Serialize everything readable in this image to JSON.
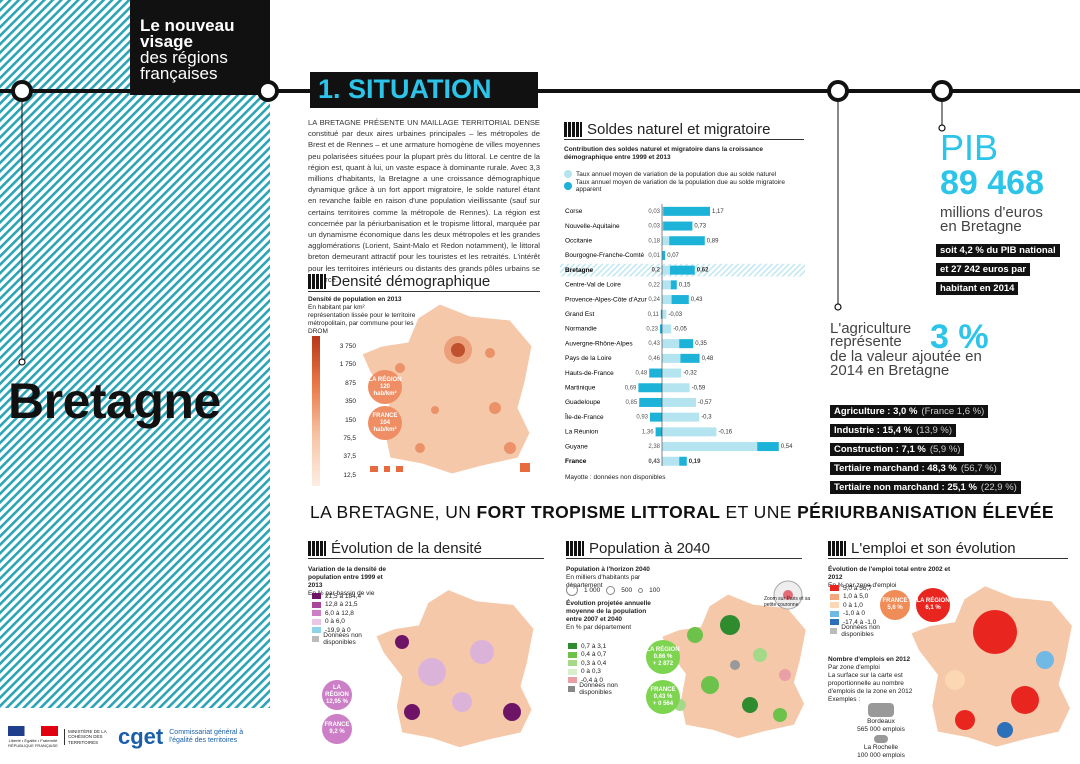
{
  "sidebar": {
    "heading_bold": "Le nouveau visage",
    "heading_light": "des régions françaises",
    "region": "Bretagne"
  },
  "footer": {
    "republic": "Liberté • Égalité • Fraternité RÉPUBLIQUE FRANÇAISE",
    "ministry": "MINISTÈRE DE LA COHÉSION DES TERRITOIRES",
    "logo": "cget",
    "agency": "Commissariat général à l'égalité des territoires"
  },
  "section_title": "1. SITUATION",
  "intro": "LA BRETAGNE PRÉSENTE UN MAILLAGE TERRITORIAL DENSE constitué par deux aires urbaines principales – les métropoles de Brest et de Rennes – et une armature homogène de villes moyennes peu polarisées situées pour la plupart près du littoral. Le centre de la région est, quant à lui, un vaste espace à dominante rurale. Avec 3,3 millions d'habitants, la Bretagne a une croissance démographique dynamique grâce à un fort apport migratoire, le solde naturel étant en revanche faible en raison d'une population vieillissante (sauf sur certains territoires comme la métropole de Rennes). La région est concernée par la périurbanisation et le tropisme littoral, marquée par un dynamisme économique dans les deux métropoles et les grandes agglomérations (Lorient, Saint-Malo et Redon notamment), le littoral breton demeurant attractif pour les touristes et les retraités. L'intérêt pour les territoires intérieurs ou distants des grands pôles urbains se renforce.",
  "density": {
    "title": "Densité démographique",
    "subtitle": "Densité de population en 2013",
    "unit": "En habitant par km²",
    "note": "représentation lissée pour le territoire métropolitain, par commune pour les DROM",
    "legend": [
      "3 750",
      "1 750",
      "875",
      "350",
      "150",
      "75,5",
      "37,5",
      "12,5"
    ],
    "region_badge": {
      "label": "LA RÉGION",
      "value": "120 hab/km²"
    },
    "france_badge": {
      "label": "FRANCE",
      "value": "104 hab/km²"
    }
  },
  "soldes": {
    "title": "Soldes naturel et migratoire",
    "subtitle": "Contribution des soldes naturel et migratoire dans la croissance démographique entre 1999 et 2013",
    "categories": [
      "Corse",
      "Nouvelle-Aquitaine",
      "Occitanie",
      "Bourgogne-Franche-Comté",
      "Bretagne",
      "Centre-Val de Loire",
      "Provence-Alpes-Côte d'Azur",
      "Grand Est",
      "Normandie",
      "Auvergne-Rhône-Alpes",
      "Pays de la Loire",
      "Hauts-de-France",
      "Martinique",
      "Guadeloupe",
      "Île-de-France",
      "La Réunion",
      "Guyane",
      "France"
    ],
    "highlight": "Bretagne",
    "series": [
      {
        "name": "Taux annuel moyen de variation de la population due au solde naturel",
        "color": "#b5e4f1",
        "values": [
          0.03,
          0.03,
          0.18,
          0.01,
          0.2,
          0.22,
          0.24,
          0.11,
          0.23,
          0.43,
          0.46,
          0.48,
          0.69,
          0.85,
          0.93,
          1.36,
          2.38,
          0.43
        ],
        "value_labels": [
          "0,03",
          "0,03",
          "0,18",
          "0,01",
          "0,2",
          "0,22",
          "0,24",
          "0,11",
          "0,23",
          "0,43",
          "0,46",
          "0,48",
          "0,69",
          "0,85",
          "0,93",
          "1,36",
          "2,38",
          "0,43"
        ]
      },
      {
        "name": "Taux annuel moyen de variation de la population due au solde migratoire apparent",
        "color": "#1db3d8",
        "values": [
          1.17,
          0.73,
          0.89,
          0.07,
          0.62,
          0.15,
          0.43,
          -0.03,
          -0.05,
          0.35,
          0.48,
          -0.32,
          -0.59,
          -0.57,
          -0.3,
          -0.16,
          0.54,
          0.19
        ],
        "value_labels": [
          "1,17",
          "0,73",
          "0,89",
          "0,07",
          "0,62",
          "0,15",
          "0,43",
          "-0,03",
          "-0,05",
          "0,35",
          "0,48",
          "-0,32",
          "-0,59",
          "-0,57",
          "-0,3",
          "-0,16",
          "0,54",
          "0,19"
        ]
      }
    ],
    "note": "Mayotte : données non disponibles"
  },
  "pib": {
    "label": "PIB",
    "value": "89 468",
    "unit": "millions d'euros en Bretagne",
    "details": [
      "soit 4,2 % du PIB national",
      "et 27 242 euros par",
      "habitant en 2014"
    ]
  },
  "agriculture": {
    "text_before": "L'agriculture représente",
    "value": "3 %",
    "text_after": "de la valeur ajoutée en 2014 en Bretagne",
    "sectors": [
      {
        "label": "Agriculture : 3,0 %",
        "france": "(France 1,6 %)"
      },
      {
        "label": "Industrie : 15,4 %",
        "france": "(13,9 %)"
      },
      {
        "label": "Construction : 7,1 %",
        "france": "(5,9 %)"
      },
      {
        "label": "Tertiaire marchand : 48,3 %",
        "france": "(56,7 %)"
      },
      {
        "label": "Tertiaire non marchand : 25,1 %",
        "france": "(22,9 %)"
      }
    ]
  },
  "headline": [
    "LA BRETAGNE, UN ",
    "FORT TROPISME LITTORAL",
    " ET UNE ",
    "PÉRIURBANISATION ÉLEVÉE"
  ],
  "evolution_densite": {
    "title": "Évolution de la densité",
    "subtitle": "Variation de la densité de population entre 1999 et 2013",
    "unit": "En % par bassin de vie",
    "legend": [
      "21,5 à 184,4",
      "12,8 à 21,5",
      "6,0 à 12,8",
      "0 à 6,0",
      "-19,9 à 0",
      "Données non disponibles"
    ],
    "region_badge": {
      "label": "LA RÉGION",
      "value": "12,95 %"
    },
    "france_badge": {
      "label": "FRANCE",
      "value": "9,2 %"
    }
  },
  "population_2040": {
    "title": "Population à 2040",
    "subtitle": "Population à l'horizon 2040",
    "unit": "En milliers d'habitants par département",
    "sizes": [
      "1 000",
      "500",
      "100"
    ],
    "subtitle2": "Évolution projetée annuelle moyenne de la population entre 2007 et 2040",
    "unit2": "En % par département",
    "legend": [
      "0,7 à 3,1",
      "0,4 à 0,7",
      "0,3 à 0,4",
      "0 à 0,3",
      "-0,4 à 0",
      "Données non disponibles"
    ],
    "zoom": "Zoom sur Paris et sa petite couronne",
    "region_badge": {
      "label": "LA RÉGION",
      "value": "0,66 %",
      "extra": "+ 2 872"
    },
    "france_badge": {
      "label": "FRANCE",
      "value": "0,43 %",
      "extra": "+ 0 564"
    }
  },
  "emploi": {
    "title": "L'emploi et son évolution",
    "subtitle": "Évolution de l'emploi total entre 2002 et 2012",
    "unit": "En % par zone d'emploi",
    "legend": [
      "5,0 à 56,7",
      "1,0 à 5,0",
      "0 à 1,0",
      "-1,0 à 0",
      "-17,4 à -1,0",
      "Données non disponibles"
    ],
    "france_badge": {
      "label": "FRANCE",
      "value": "5,6 %"
    },
    "region_badge": {
      "label": "LA RÉGION",
      "value": "6,1 %"
    },
    "subtitle2": "Nombre d'emplois en 2012",
    "unit2": "Par zone d'emploi",
    "note": "La surface sur la carte est proportionnelle au nombre d'emplois de la zone en 2012",
    "examples": "Exemples :",
    "example_items": [
      {
        "city": "Bordeaux",
        "value": "565 000 emplois"
      },
      {
        "city": "La Rochelle",
        "value": "100 000 emplois"
      }
    ]
  }
}
